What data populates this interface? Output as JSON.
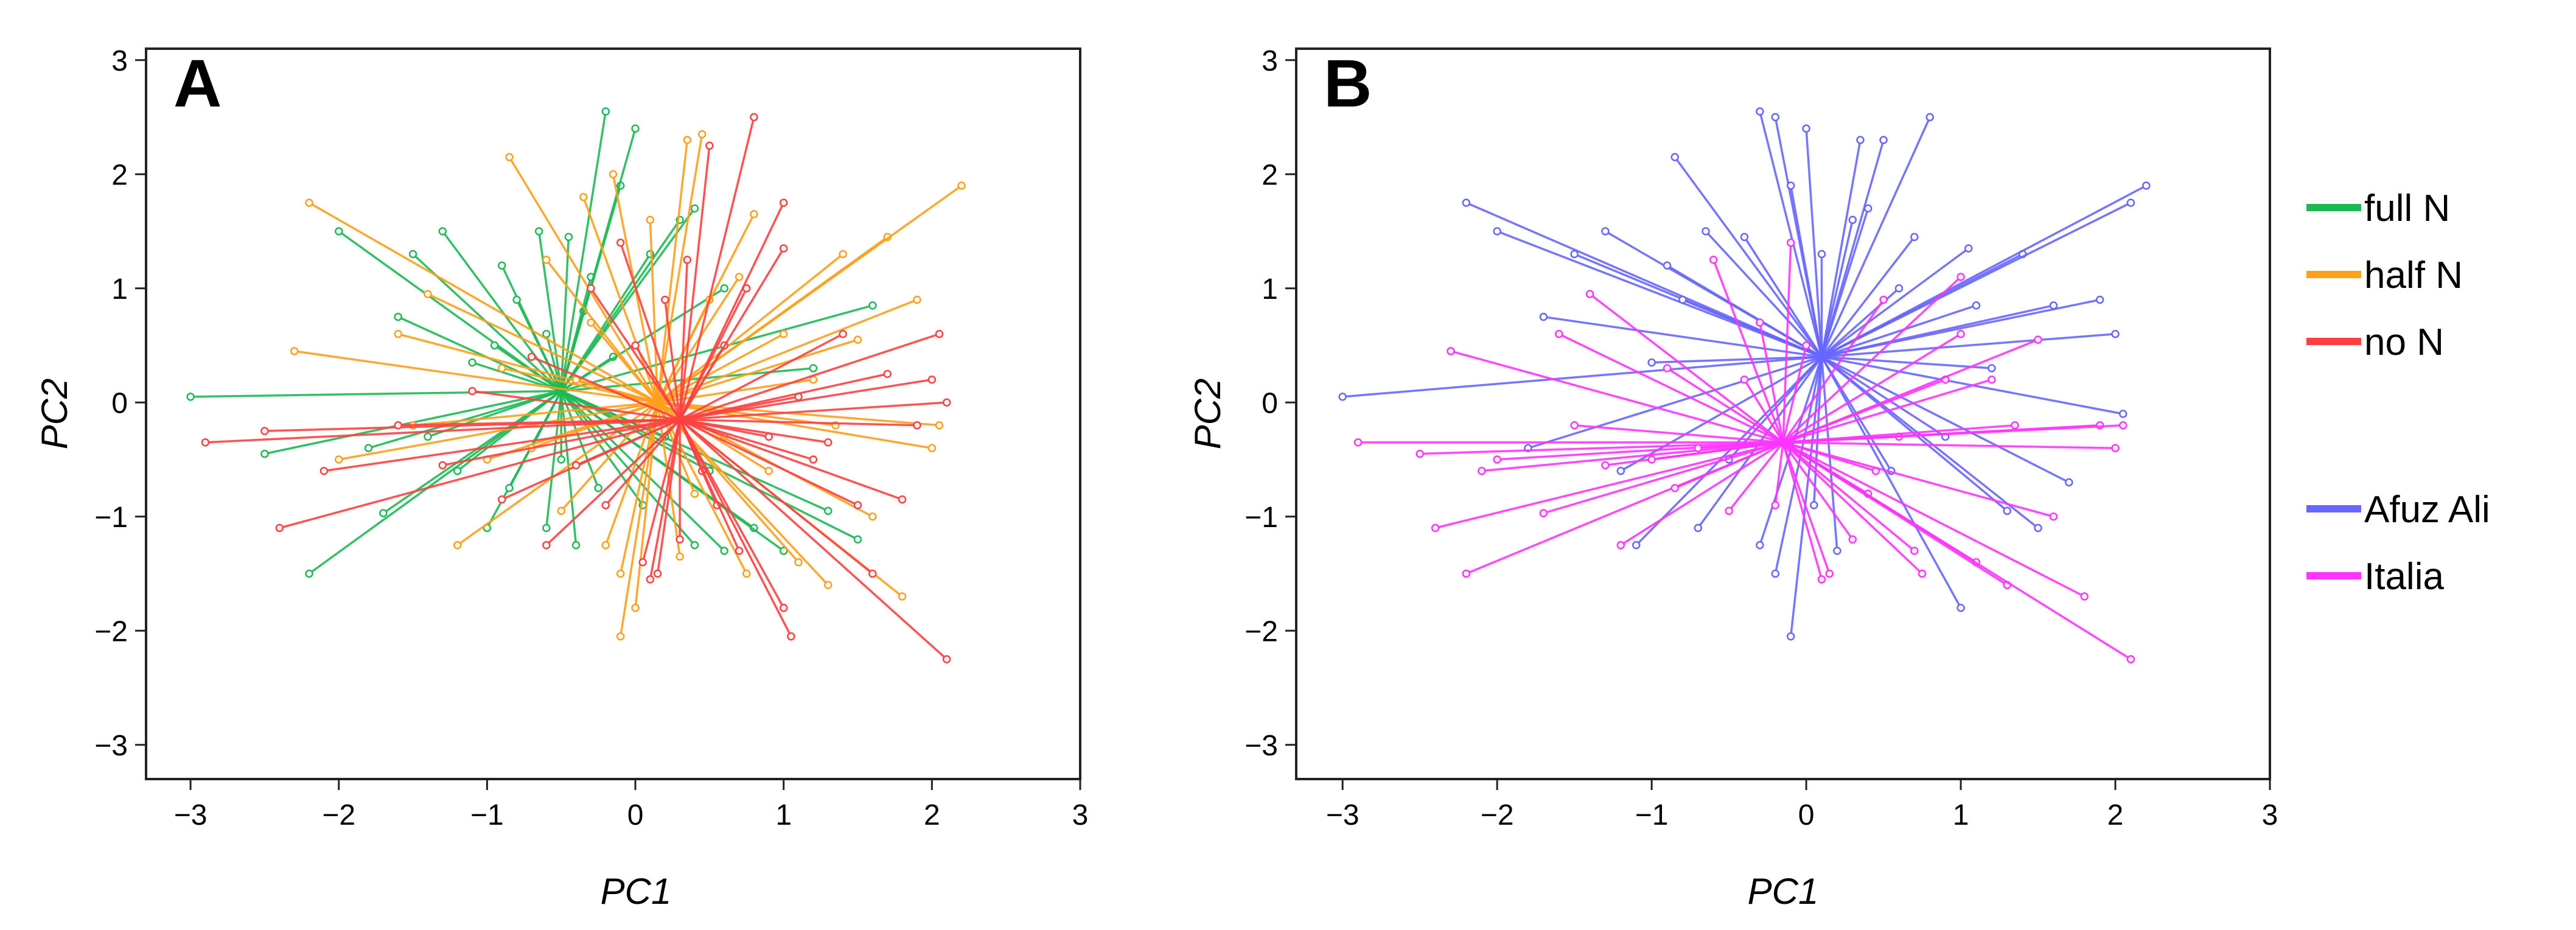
{
  "chart_data": [
    {
      "type": "scatter",
      "panel_label": "A",
      "xlabel": "PC1",
      "ylabel": "PC2",
      "xlim": [
        -3.3,
        3.0
      ],
      "ylim": [
        -3.3,
        3.1
      ],
      "xticks": [
        -3,
        -2,
        -1,
        0,
        1,
        2,
        3
      ],
      "yticks": [
        3,
        2,
        1,
        0,
        -1,
        -2,
        -3
      ],
      "style": "spider plot: each observation connected to its group centroid",
      "series": [
        {
          "name": "full N",
          "color": "#1db954",
          "centroid": [
            -0.5,
            0.1
          ],
          "points": [
            [
              -3.0,
              0.05
            ],
            [
              -2.5,
              -0.45
            ],
            [
              -2.2,
              -1.5
            ],
            [
              -2.0,
              1.5
            ],
            [
              -1.8,
              -0.4
            ],
            [
              -1.7,
              -0.97
            ],
            [
              -1.6,
              0.75
            ],
            [
              -1.5,
              1.3
            ],
            [
              -1.4,
              -0.3
            ],
            [
              -1.3,
              1.5
            ],
            [
              -1.2,
              -0.6
            ],
            [
              -1.1,
              0.35
            ],
            [
              -1.0,
              -1.1
            ],
            [
              -0.95,
              0.5
            ],
            [
              -0.9,
              1.2
            ],
            [
              -0.85,
              -0.75
            ],
            [
              -0.8,
              0.9
            ],
            [
              -0.7,
              -0.4
            ],
            [
              -0.65,
              1.5
            ],
            [
              -0.6,
              -1.1
            ],
            [
              -0.5,
              -0.5
            ],
            [
              -0.45,
              1.45
            ],
            [
              -0.4,
              -1.25
            ],
            [
              -0.35,
              0.8
            ],
            [
              -0.3,
              1.1
            ],
            [
              -0.25,
              -0.75
            ],
            [
              -0.2,
              2.55
            ],
            [
              -0.15,
              0.4
            ],
            [
              -0.1,
              1.9
            ],
            [
              0.0,
              2.4
            ],
            [
              0.05,
              -0.9
            ],
            [
              0.1,
              1.3
            ],
            [
              0.2,
              -0.3
            ],
            [
              0.3,
              1.6
            ],
            [
              0.4,
              1.7
            ],
            [
              0.5,
              -0.6
            ],
            [
              0.6,
              1.0
            ],
            [
              0.8,
              -1.1
            ],
            [
              1.0,
              -1.3
            ],
            [
              1.2,
              0.3
            ],
            [
              1.3,
              -0.95
            ],
            [
              1.5,
              -1.2
            ],
            [
              1.6,
              0.85
            ],
            [
              0.4,
              -1.25
            ],
            [
              -0.6,
              0.6
            ],
            [
              0.6,
              -1.3
            ]
          ]
        },
        {
          "name": "half N",
          "color": "#ff9f1a",
          "centroid": [
            0.15,
            0.0
          ],
          "points": [
            [
              -2.3,
              0.45
            ],
            [
              -2.2,
              1.75
            ],
            [
              -2.0,
              -0.5
            ],
            [
              -1.6,
              0.6
            ],
            [
              -1.5,
              -0.2
            ],
            [
              -1.4,
              0.95
            ],
            [
              -1.2,
              -1.25
            ],
            [
              -1.0,
              -0.5
            ],
            [
              -0.9,
              0.3
            ],
            [
              -0.85,
              2.15
            ],
            [
              -0.7,
              -0.4
            ],
            [
              -0.6,
              1.25
            ],
            [
              -0.5,
              -0.95
            ],
            [
              -0.4,
              0.2
            ],
            [
              -0.35,
              1.8
            ],
            [
              -0.3,
              0.7
            ],
            [
              -0.2,
              -1.25
            ],
            [
              -0.15,
              2.0
            ],
            [
              -0.1,
              -1.5
            ],
            [
              -0.1,
              -2.05
            ],
            [
              0.0,
              -1.8
            ],
            [
              0.1,
              1.6
            ],
            [
              0.3,
              -1.35
            ],
            [
              0.35,
              2.3
            ],
            [
              0.4,
              -0.8
            ],
            [
              0.45,
              2.35
            ],
            [
              0.5,
              0.9
            ],
            [
              0.6,
              -0.3
            ],
            [
              0.7,
              1.1
            ],
            [
              0.75,
              -1.5
            ],
            [
              0.8,
              1.65
            ],
            [
              0.9,
              -0.6
            ],
            [
              1.0,
              0.6
            ],
            [
              1.1,
              -1.4
            ],
            [
              1.2,
              0.2
            ],
            [
              1.3,
              -1.6
            ],
            [
              1.35,
              -0.2
            ],
            [
              1.4,
              1.3
            ],
            [
              1.5,
              0.55
            ],
            [
              1.6,
              -1.0
            ],
            [
              1.7,
              1.45
            ],
            [
              1.8,
              -1.7
            ],
            [
              1.9,
              0.9
            ],
            [
              2.0,
              -0.4
            ],
            [
              2.05,
              -0.2
            ],
            [
              2.2,
              1.9
            ]
          ]
        },
        {
          "name": "no N",
          "color": "#ff4040",
          "centroid": [
            0.3,
            -0.15
          ],
          "points": [
            [
              -2.9,
              -0.35
            ],
            [
              -2.5,
              -0.25
            ],
            [
              -2.4,
              -1.1
            ],
            [
              -2.1,
              -0.6
            ],
            [
              -1.6,
              -0.2
            ],
            [
              -1.3,
              -0.55
            ],
            [
              -1.1,
              0.1
            ],
            [
              -0.9,
              -0.85
            ],
            [
              -0.7,
              0.4
            ],
            [
              -0.6,
              -1.25
            ],
            [
              -0.4,
              -0.55
            ],
            [
              -0.3,
              1.0
            ],
            [
              -0.2,
              -0.9
            ],
            [
              -0.1,
              1.4
            ],
            [
              0.0,
              0.5
            ],
            [
              0.05,
              -1.4
            ],
            [
              0.1,
              -1.55
            ],
            [
              0.15,
              -1.5
            ],
            [
              0.2,
              0.9
            ],
            [
              0.3,
              -1.2
            ],
            [
              0.35,
              1.25
            ],
            [
              0.45,
              -0.6
            ],
            [
              0.5,
              2.25
            ],
            [
              0.55,
              -0.9
            ],
            [
              0.6,
              0.5
            ],
            [
              0.7,
              -1.3
            ],
            [
              0.75,
              1.0
            ],
            [
              0.8,
              2.5
            ],
            [
              0.9,
              -0.3
            ],
            [
              1.0,
              -1.8
            ],
            [
              1.0,
              1.35
            ],
            [
              1.05,
              -2.05
            ],
            [
              1.1,
              0.05
            ],
            [
              1.2,
              -0.5
            ],
            [
              1.3,
              -0.35
            ],
            [
              1.4,
              0.6
            ],
            [
              1.5,
              -0.9
            ],
            [
              1.6,
              -1.5
            ],
            [
              1.7,
              0.25
            ],
            [
              1.8,
              -0.85
            ],
            [
              1.9,
              -0.2
            ],
            [
              2.0,
              0.2
            ],
            [
              2.05,
              0.6
            ],
            [
              2.1,
              0.0
            ],
            [
              2.1,
              -2.25
            ],
            [
              1.0,
              1.75
            ]
          ]
        }
      ],
      "legend": [
        {
          "label": "full N",
          "color": "#1db954"
        },
        {
          "label": "half N",
          "color": "#ff9f1a"
        },
        {
          "label": "no N",
          "color": "#ff4040"
        }
      ]
    },
    {
      "type": "scatter",
      "panel_label": "B",
      "xlabel": "PC1",
      "ylabel": "PC2",
      "xlim": [
        -3.3,
        3.0
      ],
      "ylim": [
        -3.3,
        3.1
      ],
      "xticks": [
        -3,
        -2,
        -1,
        0,
        1,
        2,
        3
      ],
      "yticks": [
        3,
        2,
        1,
        0,
        -1,
        -2,
        -3
      ],
      "style": "spider plot: each observation connected to its group centroid",
      "series": [
        {
          "name": "Afuz Ali",
          "color": "#6666ff",
          "centroid": [
            0.1,
            0.4
          ],
          "points": [
            [
              -3.0,
              0.05
            ],
            [
              -2.2,
              1.75
            ],
            [
              -2.0,
              1.5
            ],
            [
              -1.8,
              -0.4
            ],
            [
              -1.7,
              0.75
            ],
            [
              -1.5,
              1.3
            ],
            [
              -1.3,
              1.5
            ],
            [
              -1.2,
              -0.6
            ],
            [
              -1.1,
              -1.25
            ],
            [
              -1.0,
              0.35
            ],
            [
              -0.9,
              1.2
            ],
            [
              -0.85,
              2.15
            ],
            [
              -0.8,
              0.9
            ],
            [
              -0.7,
              -1.1
            ],
            [
              -0.65,
              1.5
            ],
            [
              -0.5,
              -0.5
            ],
            [
              -0.4,
              1.45
            ],
            [
              -0.3,
              -1.25
            ],
            [
              -0.3,
              2.55
            ],
            [
              -0.2,
              2.5
            ],
            [
              -0.2,
              -1.5
            ],
            [
              -0.1,
              1.9
            ],
            [
              -0.1,
              -2.05
            ],
            [
              0.0,
              2.4
            ],
            [
              0.05,
              -0.9
            ],
            [
              0.1,
              1.3
            ],
            [
              0.2,
              -1.3
            ],
            [
              0.3,
              1.6
            ],
            [
              0.35,
              2.3
            ],
            [
              0.4,
              1.7
            ],
            [
              0.5,
              2.3
            ],
            [
              0.55,
              -0.6
            ],
            [
              0.6,
              1.0
            ],
            [
              0.7,
              1.45
            ],
            [
              0.8,
              2.5
            ],
            [
              0.9,
              -0.3
            ],
            [
              1.0,
              -1.8
            ],
            [
              1.05,
              1.35
            ],
            [
              1.1,
              0.85
            ],
            [
              1.2,
              0.3
            ],
            [
              1.3,
              -0.95
            ],
            [
              1.4,
              1.3
            ],
            [
              1.5,
              -1.1
            ],
            [
              1.6,
              0.85
            ],
            [
              1.7,
              -0.7
            ],
            [
              1.9,
              0.9
            ],
            [
              2.0,
              0.6
            ],
            [
              2.05,
              -0.1
            ],
            [
              2.1,
              1.75
            ],
            [
              2.2,
              1.9
            ]
          ]
        },
        {
          "name": "Italia",
          "color": "#ff33ff",
          "centroid": [
            -0.15,
            -0.35
          ],
          "points": [
            [
              -2.9,
              -0.35
            ],
            [
              -2.5,
              -0.45
            ],
            [
              -2.4,
              -1.1
            ],
            [
              -2.3,
              0.45
            ],
            [
              -2.2,
              -1.5
            ],
            [
              -2.1,
              -0.6
            ],
            [
              -2.0,
              -0.5
            ],
            [
              -1.7,
              -0.97
            ],
            [
              -1.6,
              0.6
            ],
            [
              -1.5,
              -0.2
            ],
            [
              -1.4,
              0.95
            ],
            [
              -1.3,
              -0.55
            ],
            [
              -1.2,
              -1.25
            ],
            [
              -1.0,
              -0.5
            ],
            [
              -0.9,
              0.3
            ],
            [
              -0.85,
              -0.75
            ],
            [
              -0.7,
              -0.4
            ],
            [
              -0.6,
              1.25
            ],
            [
              -0.5,
              -0.95
            ],
            [
              -0.4,
              0.2
            ],
            [
              -0.3,
              0.7
            ],
            [
              -0.2,
              -0.9
            ],
            [
              -0.1,
              1.4
            ],
            [
              0.0,
              0.5
            ],
            [
              0.1,
              -1.55
            ],
            [
              0.15,
              -1.5
            ],
            [
              0.3,
              -1.2
            ],
            [
              0.4,
              -0.8
            ],
            [
              0.45,
              -0.6
            ],
            [
              0.5,
              0.9
            ],
            [
              0.6,
              -0.3
            ],
            [
              0.7,
              -1.3
            ],
            [
              0.75,
              -1.5
            ],
            [
              0.9,
              0.2
            ],
            [
              1.0,
              0.6
            ],
            [
              1.1,
              -1.4
            ],
            [
              1.2,
              0.2
            ],
            [
              1.3,
              -1.6
            ],
            [
              1.35,
              -0.2
            ],
            [
              1.5,
              0.55
            ],
            [
              1.6,
              -1.0
            ],
            [
              1.8,
              -1.7
            ],
            [
              1.9,
              -0.2
            ],
            [
              2.0,
              -0.4
            ],
            [
              2.05,
              -0.2
            ],
            [
              2.1,
              -2.25
            ],
            [
              1.0,
              1.1
            ]
          ]
        }
      ],
      "legend": [
        {
          "label": "Afuz Ali",
          "color": "#6666ff"
        },
        {
          "label": "Italia",
          "color": "#ff33ff"
        }
      ]
    }
  ]
}
